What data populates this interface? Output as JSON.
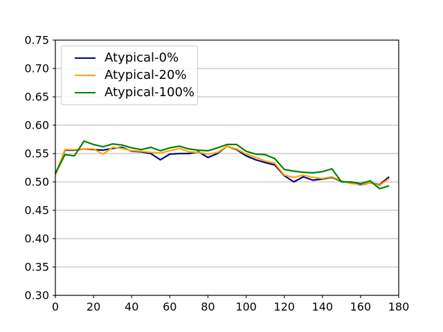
{
  "chart_data": {
    "type": "line",
    "title": "",
    "xlabel": "",
    "ylabel": "",
    "xlim": [
      0,
      180
    ],
    "ylim": [
      0.3,
      0.75
    ],
    "xticks": [
      0,
      20,
      40,
      60,
      80,
      100,
      120,
      140,
      160,
      180
    ],
    "yticks": [
      0.3,
      0.35,
      0.4,
      0.45,
      0.5,
      0.55,
      0.6,
      0.65,
      0.7,
      0.75
    ],
    "ytick_labels": [
      "0.30",
      "0.35",
      "0.40",
      "0.45",
      "0.50",
      "0.55",
      "0.60",
      "0.65",
      "0.70",
      "0.75"
    ],
    "grid": "horizontal",
    "grid_color": "#b0b0b0",
    "legend_position": "upper-left",
    "x": [
      0,
      5,
      10,
      15,
      20,
      25,
      30,
      35,
      40,
      45,
      50,
      55,
      60,
      65,
      70,
      75,
      80,
      85,
      90,
      95,
      100,
      105,
      110,
      115,
      120,
      125,
      130,
      135,
      140,
      145,
      150,
      155,
      160,
      165,
      170,
      175
    ],
    "series": [
      {
        "name": "Atypical-0%",
        "color": "#000080",
        "values": [
          0.513,
          0.556,
          0.556,
          0.558,
          0.557,
          0.556,
          0.559,
          0.561,
          0.554,
          0.553,
          0.55,
          0.539,
          0.549,
          0.55,
          0.55,
          0.553,
          0.543,
          0.55,
          0.563,
          0.557,
          0.546,
          0.539,
          0.534,
          0.53,
          0.511,
          0.5,
          0.509,
          0.503,
          0.505,
          0.508,
          0.501,
          0.498,
          0.495,
          0.498,
          0.495,
          0.509
        ]
      },
      {
        "name": "Atypical-20%",
        "color": "#FFA500",
        "values": [
          0.513,
          0.557,
          0.557,
          0.558,
          0.558,
          0.549,
          0.561,
          0.559,
          0.555,
          0.554,
          0.552,
          0.551,
          0.555,
          0.559,
          0.553,
          0.552,
          0.549,
          0.552,
          0.563,
          0.558,
          0.549,
          0.543,
          0.537,
          0.533,
          0.512,
          0.508,
          0.512,
          0.508,
          0.506,
          0.509,
          0.502,
          0.497,
          0.496,
          0.498,
          0.494,
          0.506
        ]
      },
      {
        "name": "Atypical-100%",
        "color": "#008000",
        "values": [
          0.515,
          0.548,
          0.546,
          0.572,
          0.566,
          0.562,
          0.567,
          0.565,
          0.56,
          0.557,
          0.561,
          0.555,
          0.56,
          0.563,
          0.558,
          0.556,
          0.555,
          0.56,
          0.566,
          0.566,
          0.554,
          0.549,
          0.548,
          0.541,
          0.522,
          0.519,
          0.517,
          0.516,
          0.518,
          0.523,
          0.5,
          0.5,
          0.497,
          0.502,
          0.488,
          0.493
        ]
      }
    ]
  }
}
